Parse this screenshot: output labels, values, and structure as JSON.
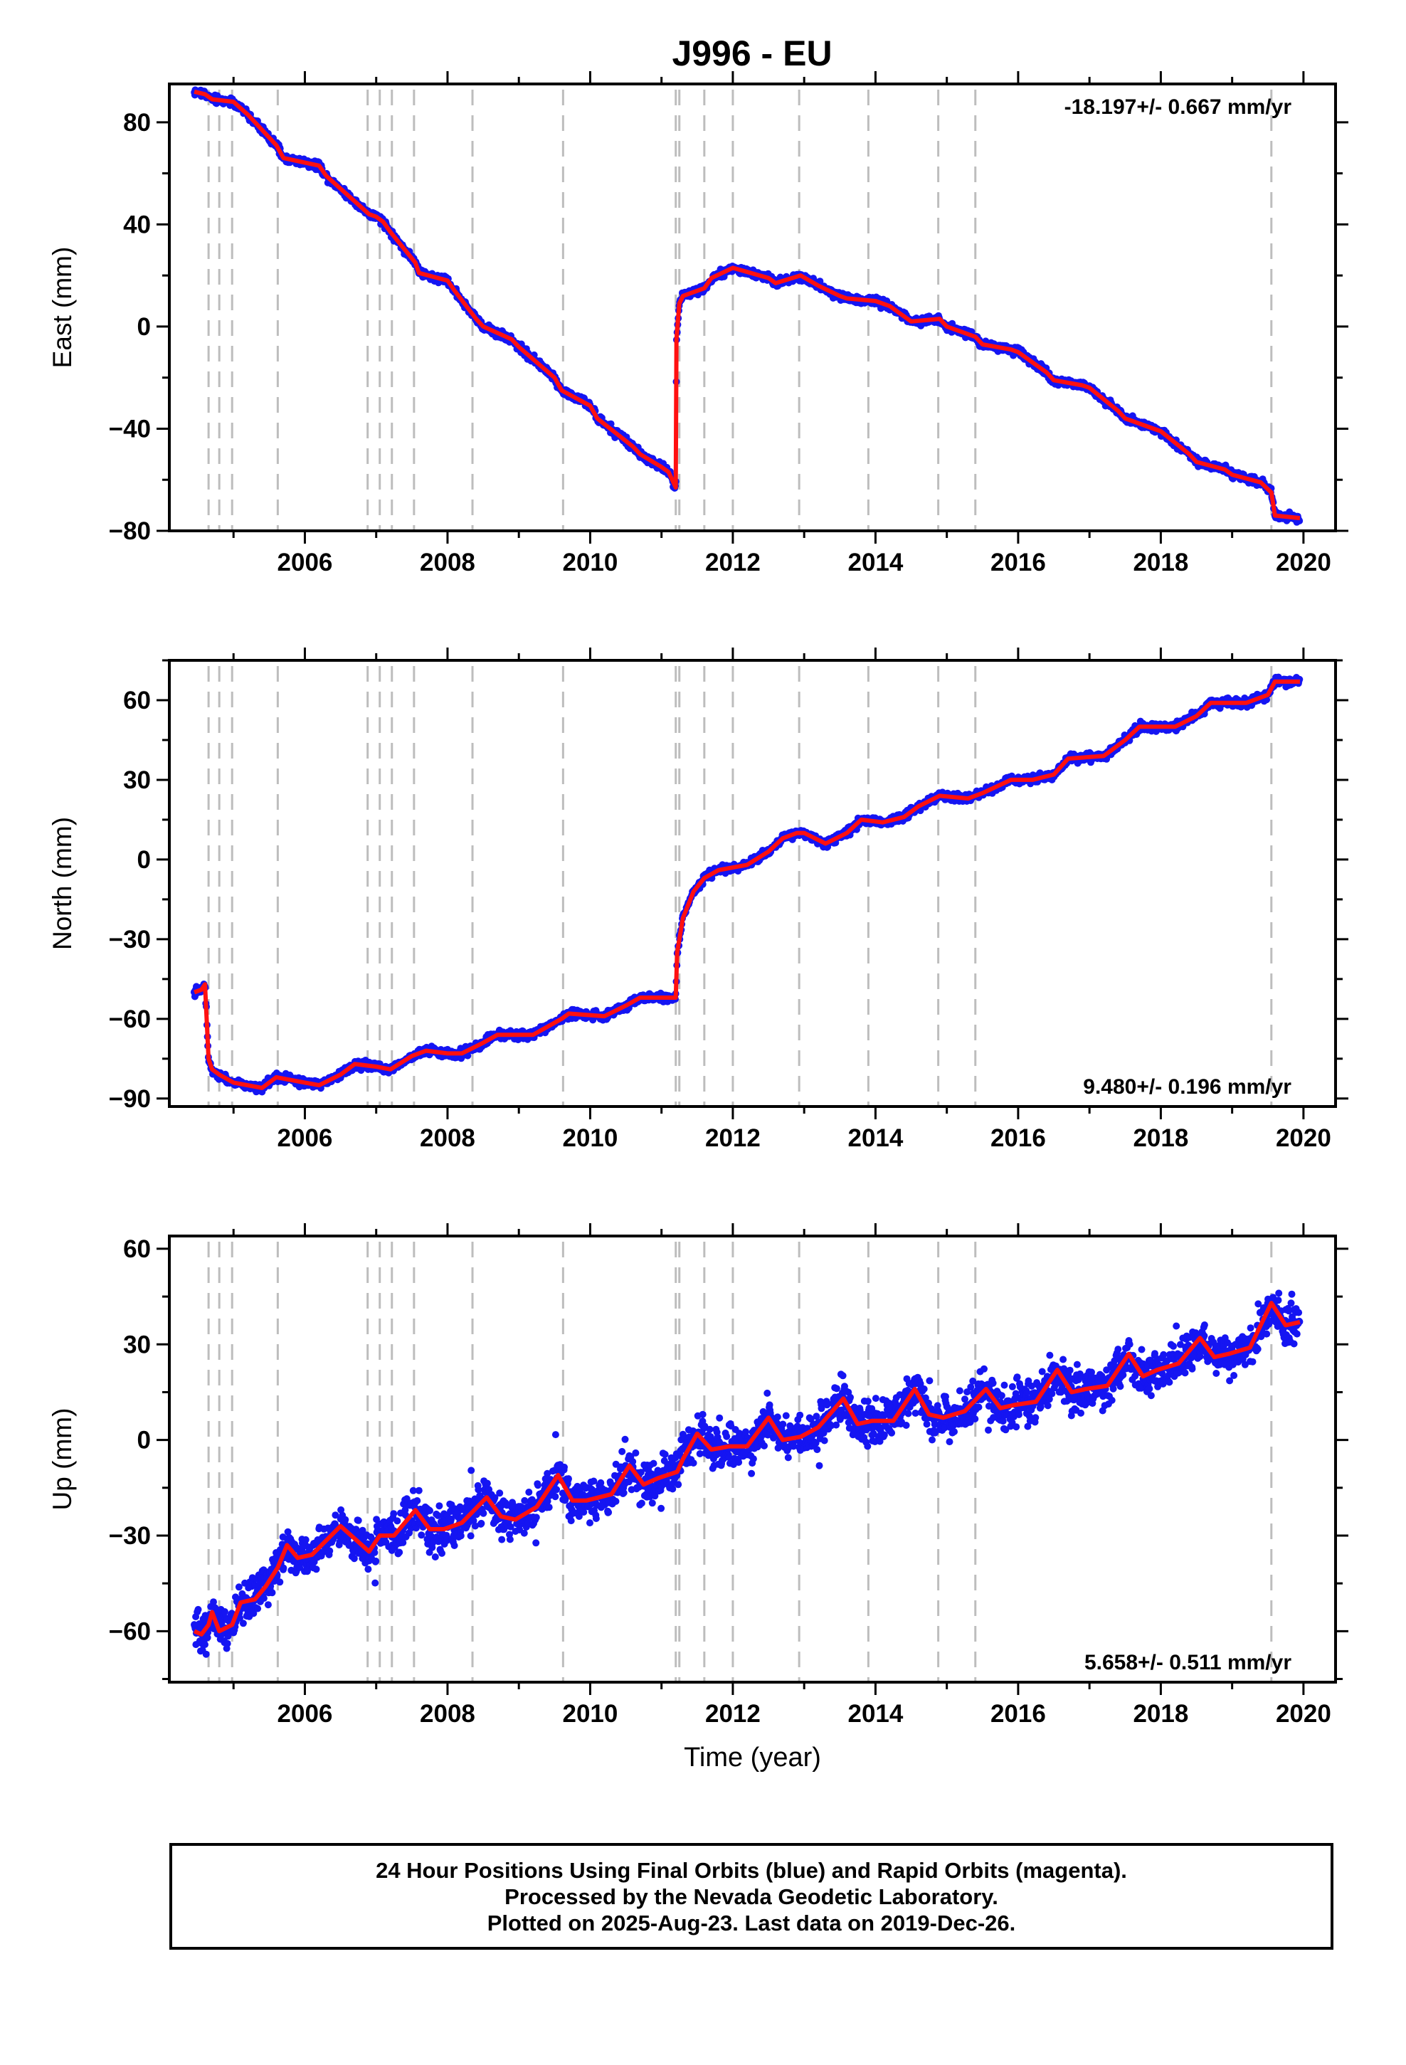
{
  "title": "J996 - EU",
  "colors": {
    "data": "#1515f2",
    "model": "#ff1010",
    "events": "#bdbdbd",
    "frame": "#000000"
  },
  "footer": {
    "lines": [
      "24 Hour Positions Using Final Orbits (blue) and Rapid Orbits (magenta).",
      "Processed by the Nevada Geodetic Laboratory.",
      "Plotted on 2025-Aug-23. Last data on 2019-Dec-26."
    ]
  },
  "chart_data": [
    {
      "type": "scatter",
      "ylabel": "East (mm)",
      "xlabel": "",
      "xlim": [
        2004.1,
        2020.45
      ],
      "ylim": [
        -80,
        95
      ],
      "xticks": [
        2006,
        2008,
        2010,
        2012,
        2014,
        2016,
        2018,
        2020
      ],
      "yticks": [
        -80,
        -40,
        0,
        40,
        80
      ],
      "rate": "-18.197+/- 0.667 mm/yr",
      "rate_position": "top-right",
      "events": [
        2004.65,
        2004.8,
        2004.98,
        2005.62,
        2006.88,
        2007.05,
        2007.22,
        2007.53,
        2008.35,
        2009.62,
        2011.2,
        2011.25,
        2011.6,
        2012.0,
        2012.93,
        2013.9,
        2014.88,
        2015.4,
        2019.55
      ],
      "series": [
        {
          "kind": "model",
          "x": [
            2004.45,
            2004.6,
            2004.7,
            2005.0,
            2005.2,
            2005.6,
            2005.7,
            2006.2,
            2006.3,
            2006.9,
            2007.0,
            2007.1,
            2007.2,
            2007.55,
            2007.6,
            2008.0,
            2008.1,
            2008.4,
            2008.5,
            2008.9,
            2009.0,
            2009.5,
            2009.6,
            2010.0,
            2010.1,
            2010.6,
            2010.7,
            2011.0,
            2011.1,
            2011.2,
            2011.21,
            2011.25,
            2011.3,
            2011.6,
            2011.7,
            2012.0,
            2012.5,
            2012.6,
            2012.95,
            2013.2,
            2013.5,
            2013.6,
            2014.0,
            2014.2,
            2014.4,
            2014.5,
            2014.9,
            2015.0,
            2015.4,
            2015.5,
            2015.9,
            2016.0,
            2016.4,
            2016.5,
            2016.9,
            2017.0,
            2017.4,
            2017.5,
            2017.9,
            2018.0,
            2018.4,
            2018.5,
            2018.9,
            2019.0,
            2019.4,
            2019.55,
            2019.6,
            2019.95
          ],
          "y": [
            92,
            91,
            89,
            88,
            83,
            71,
            66,
            63,
            59,
            44,
            43,
            41,
            37,
            25,
            21,
            18,
            14,
            3,
            0,
            -5,
            -8,
            -20,
            -25,
            -31,
            -36,
            -47,
            -50,
            -55,
            -57,
            -63,
            -5,
            9,
            12,
            15,
            19,
            23,
            19,
            17,
            20,
            16,
            12,
            11,
            10,
            8,
            4,
            2,
            3,
            0,
            -4,
            -7,
            -9,
            -10,
            -18,
            -21,
            -23,
            -24,
            -33,
            -36,
            -40,
            -41,
            -50,
            -53,
            -56,
            -58,
            -61,
            -65,
            -74,
            -75
          ]
        }
      ]
    },
    {
      "type": "scatter",
      "ylabel": "North (mm)",
      "xlabel": "",
      "xlim": [
        2004.1,
        2020.45
      ],
      "ylim": [
        -93,
        75
      ],
      "xticks": [
        2006,
        2008,
        2010,
        2012,
        2014,
        2016,
        2018,
        2020
      ],
      "yticks": [
        -90,
        -60,
        -30,
        0,
        30,
        60
      ],
      "rate": "9.480+/- 0.196 mm/yr",
      "rate_position": "bottom-right",
      "events": [
        2004.65,
        2004.8,
        2004.98,
        2005.62,
        2006.88,
        2007.05,
        2007.22,
        2007.53,
        2008.35,
        2009.62,
        2011.2,
        2011.25,
        2011.6,
        2012.0,
        2012.93,
        2013.9,
        2014.88,
        2015.4,
        2019.55
      ],
      "series": [
        {
          "kind": "model",
          "x": [
            2004.45,
            2004.55,
            2004.6,
            2004.65,
            2004.7,
            2004.8,
            2005.0,
            2005.4,
            2005.6,
            2006.0,
            2006.2,
            2006.5,
            2006.7,
            2007.0,
            2007.2,
            2007.5,
            2007.7,
            2008.0,
            2008.2,
            2008.5,
            2008.7,
            2009.0,
            2009.2,
            2009.6,
            2009.7,
            2010.2,
            2010.5,
            2010.7,
            2011.1,
            2011.2,
            2011.22,
            2011.3,
            2011.45,
            2011.6,
            2011.8,
            2012.0,
            2012.2,
            2012.5,
            2012.7,
            2012.9,
            2013.0,
            2013.3,
            2013.6,
            2013.8,
            2014.1,
            2014.4,
            2014.6,
            2014.9,
            2015.3,
            2015.5,
            2015.9,
            2016.2,
            2016.5,
            2016.7,
            2017.2,
            2017.5,
            2017.7,
            2018.2,
            2018.5,
            2018.7,
            2019.2,
            2019.5,
            2019.6,
            2019.95
          ],
          "y": [
            -50,
            -49,
            -47,
            -75,
            -79,
            -81,
            -84,
            -86,
            -82,
            -84,
            -85,
            -81,
            -77,
            -78,
            -79,
            -74,
            -72,
            -73,
            -73,
            -69,
            -66,
            -66,
            -66,
            -60,
            -58,
            -59,
            -55,
            -52,
            -52,
            -52,
            -35,
            -22,
            -12,
            -7,
            -4,
            -3,
            -2,
            3,
            8,
            10,
            10,
            6,
            10,
            15,
            14,
            16,
            20,
            24,
            23,
            25,
            30,
            30,
            32,
            38,
            39,
            45,
            50,
            50,
            54,
            59,
            59,
            62,
            67,
            67
          ]
        }
      ]
    },
    {
      "type": "scatter",
      "ylabel": "Up (mm)",
      "xlabel": "Time (year)",
      "xlim": [
        2004.1,
        2020.45
      ],
      "ylim": [
        -76,
        64
      ],
      "xticks": [
        2006,
        2008,
        2010,
        2012,
        2014,
        2016,
        2018,
        2020
      ],
      "yticks": [
        -60,
        -30,
        0,
        30,
        60
      ],
      "rate": "5.658+/- 0.511 mm/yr",
      "rate_position": "bottom-right",
      "events": [
        2004.65,
        2004.8,
        2004.98,
        2005.62,
        2006.88,
        2007.05,
        2007.22,
        2007.53,
        2008.35,
        2009.62,
        2011.2,
        2011.25,
        2011.6,
        2012.0,
        2012.93,
        2013.9,
        2014.88,
        2015.4,
        2019.55
      ],
      "series": [
        {
          "kind": "model",
          "x": [
            2004.45,
            2004.55,
            2004.65,
            2004.7,
            2004.8,
            2004.98,
            2005.1,
            2005.3,
            2005.45,
            2005.62,
            2005.75,
            2005.9,
            2006.1,
            2006.5,
            2006.75,
            2006.9,
            2007.05,
            2007.25,
            2007.55,
            2007.75,
            2007.95,
            2008.2,
            2008.55,
            2008.75,
            2008.95,
            2009.25,
            2009.55,
            2009.75,
            2009.95,
            2010.3,
            2010.55,
            2010.75,
            2010.95,
            2011.22,
            2011.3,
            2011.5,
            2011.7,
            2011.95,
            2012.2,
            2012.5,
            2012.7,
            2012.95,
            2013.2,
            2013.55,
            2013.75,
            2013.95,
            2014.25,
            2014.55,
            2014.75,
            2014.95,
            2015.25,
            2015.55,
            2015.75,
            2015.95,
            2016.25,
            2016.55,
            2016.75,
            2016.95,
            2017.25,
            2017.55,
            2017.75,
            2017.95,
            2018.25,
            2018.55,
            2018.75,
            2018.95,
            2019.25,
            2019.55,
            2019.75,
            2019.95
          ],
          "y": [
            -60,
            -61,
            -58,
            -54,
            -60,
            -58,
            -51,
            -50,
            -46,
            -40,
            -33,
            -37,
            -36,
            -27,
            -32,
            -35,
            -30,
            -30,
            -22,
            -28,
            -28,
            -26,
            -18,
            -24,
            -25,
            -21,
            -11,
            -19,
            -19,
            -17,
            -8,
            -14,
            -12,
            -10,
            -6,
            2,
            -3,
            -2,
            -2,
            7,
            0,
            1,
            4,
            13,
            5,
            6,
            6,
            16,
            8,
            7,
            9,
            16,
            10,
            11,
            12,
            22,
            15,
            16,
            17,
            27,
            20,
            22,
            24,
            32,
            26,
            27,
            29,
            43,
            36,
            37
          ]
        }
      ]
    }
  ]
}
